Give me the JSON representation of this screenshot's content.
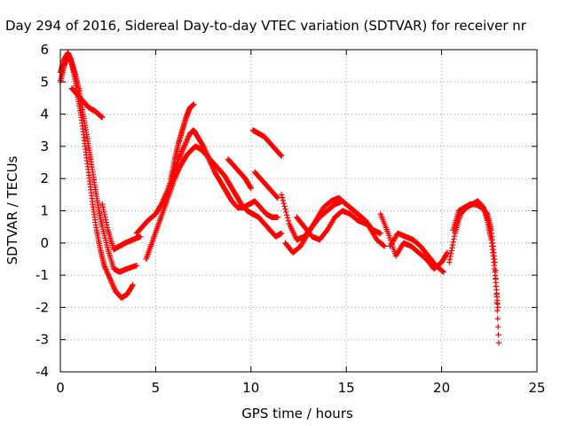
{
  "chart_data": {
    "type": "scatter",
    "title": "Day 294 of 2016, Sidereal Day-to-day VTEC variation (SDTVAR) for receiver nr",
    "xlabel": "GPS time / hours",
    "ylabel": "SDTVAR / TECUs",
    "xlim": [
      0,
      25
    ],
    "ylim": [
      -4,
      6
    ],
    "xticks": [
      0,
      5,
      10,
      15,
      20,
      25
    ],
    "yticks": [
      -4,
      -3,
      -2,
      -1,
      0,
      1,
      2,
      3,
      4,
      5,
      6
    ],
    "grid": true,
    "legend": "none",
    "marker": "plus",
    "color": "#ff0000",
    "series": [
      {
        "x": [
          0.0,
          0.2,
          0.4,
          0.55,
          0.7,
          0.9,
          1.1,
          1.3,
          1.5,
          1.7,
          1.9,
          2.1,
          2.3,
          2.6,
          2.9,
          3.2,
          3.5,
          3.8
        ],
        "y": [
          5.3,
          5.7,
          5.9,
          5.7,
          5.3,
          4.6,
          3.9,
          3.0,
          2.1,
          1.2,
          0.4,
          -0.2,
          -0.7,
          -1.1,
          -1.5,
          -1.7,
          -1.6,
          -1.3
        ]
      },
      {
        "x": [
          0.0,
          0.2,
          0.4,
          0.6,
          0.8,
          1.0,
          1.2,
          1.4,
          1.6,
          1.8,
          2.0,
          2.2,
          2.5,
          2.8,
          3.1,
          3.5,
          4.0
        ],
        "y": [
          5.0,
          5.5,
          5.8,
          5.6,
          5.2,
          4.7,
          4.0,
          3.3,
          2.6,
          1.8,
          1.1,
          0.5,
          -0.2,
          -0.8,
          -0.9,
          -0.8,
          -0.7
        ]
      },
      {
        "x": [
          0.6,
          0.9,
          1.2,
          1.5,
          1.8,
          2.0,
          2.2
        ],
        "y": [
          4.8,
          4.6,
          4.4,
          4.2,
          4.1,
          4.0,
          3.9
        ]
      },
      {
        "x": [
          2.2,
          2.5,
          2.8,
          3.1,
          3.4,
          3.8,
          4.2
        ],
        "y": [
          1.2,
          0.4,
          -0.2,
          -0.1,
          0.0,
          0.1,
          0.2
        ]
      },
      {
        "x": [
          4.0,
          4.3,
          4.6,
          5.0,
          5.3,
          5.6,
          5.9,
          6.2,
          6.5,
          6.8,
          7.0,
          7.2,
          7.5,
          7.8,
          8.1,
          8.4,
          8.7,
          9.0,
          9.3,
          9.6,
          9.9,
          10.2,
          10.5,
          10.8,
          11.1,
          11.4
        ],
        "y": [
          0.3,
          0.5,
          0.7,
          0.9,
          1.2,
          1.6,
          2.1,
          2.6,
          3.0,
          3.4,
          3.5,
          3.3,
          3.0,
          2.6,
          2.2,
          1.9,
          1.6,
          1.3,
          1.1,
          1.1,
          1.2,
          1.3,
          1.1,
          0.9,
          0.8,
          0.8
        ]
      },
      {
        "x": [
          4.5,
          4.8,
          5.1,
          5.4,
          5.7,
          6.0,
          6.3,
          6.6,
          6.9,
          7.1,
          7.4,
          7.7,
          8.0,
          8.3,
          8.6,
          8.9,
          9.2,
          9.5,
          9.8,
          10.1,
          10.4,
          10.7,
          11.0,
          11.3,
          11.6
        ],
        "y": [
          -0.5,
          0.0,
          0.5,
          1.0,
          1.5,
          2.0,
          2.4,
          2.7,
          2.9,
          3.0,
          2.9,
          2.7,
          2.5,
          2.3,
          2.1,
          1.8,
          1.5,
          1.2,
          1.0,
          0.9,
          0.8,
          0.6,
          0.4,
          0.2,
          0.3
        ]
      },
      {
        "x": [
          5.8,
          6.0,
          6.2,
          6.4,
          6.6,
          6.8,
          7.0
        ],
        "y": [
          2.0,
          2.6,
          3.1,
          3.5,
          3.9,
          4.2,
          4.3
        ]
      },
      {
        "x": [
          8.8,
          9.1,
          9.4,
          9.7,
          10.0
        ],
        "y": [
          2.6,
          2.4,
          2.2,
          2.0,
          1.7
        ]
      },
      {
        "x": [
          10.1,
          10.4,
          10.7,
          11.0,
          11.3,
          11.6
        ],
        "y": [
          3.5,
          3.4,
          3.3,
          3.1,
          2.9,
          2.7
        ]
      },
      {
        "x": [
          10.2,
          10.5,
          10.8,
          11.1,
          11.4
        ],
        "y": [
          2.2,
          2.0,
          1.8,
          1.6,
          1.4
        ]
      },
      {
        "x": [
          11.6,
          12.0,
          12.4,
          12.8,
          13.2,
          13.6,
          14.0,
          14.4,
          14.8,
          15.2,
          15.6,
          16.0,
          16.4,
          16.8
        ],
        "y": [
          1.5,
          0.6,
          0.1,
          0.2,
          0.5,
          0.8,
          1.0,
          1.2,
          1.3,
          1.1,
          0.9,
          0.7,
          0.4,
          0.3
        ]
      },
      {
        "x": [
          11.8,
          12.2,
          12.6,
          13.0,
          13.4,
          13.8,
          14.2,
          14.6,
          15.0,
          15.4,
          15.8,
          16.2,
          16.6,
          17.0
        ],
        "y": [
          0.0,
          -0.3,
          -0.1,
          0.3,
          0.7,
          1.1,
          1.3,
          1.4,
          1.2,
          1.0,
          0.8,
          0.5,
          0.1,
          -0.1
        ]
      },
      {
        "x": [
          12.4,
          12.8,
          13.2,
          13.6,
          14.0,
          14.4,
          14.8,
          15.2,
          15.6,
          16.0
        ],
        "y": [
          0.8,
          0.5,
          0.2,
          0.1,
          0.4,
          0.8,
          1.0,
          0.9,
          0.7,
          0.6
        ]
      },
      {
        "x": [
          16.8,
          17.2,
          17.6,
          18.0,
          18.4,
          18.8,
          19.2,
          19.6,
          20.0,
          20.3
        ],
        "y": [
          0.9,
          0.3,
          -0.4,
          0.0,
          -0.1,
          -0.3,
          -0.5,
          -0.8,
          -0.6,
          -0.3
        ]
      },
      {
        "x": [
          17.3,
          17.7,
          18.1,
          18.5,
          18.9,
          19.3,
          19.7,
          20.1
        ],
        "y": [
          -0.1,
          0.3,
          0.2,
          0.1,
          -0.1,
          -0.4,
          -0.7,
          -0.9
        ]
      },
      {
        "x": [
          20.4,
          20.7,
          21.0,
          21.3,
          21.6,
          21.9,
          22.2,
          22.4,
          22.6,
          22.8,
          22.95
        ],
        "y": [
          -0.6,
          0.3,
          0.9,
          1.1,
          1.2,
          1.3,
          1.1,
          0.7,
          0.1,
          -0.9,
          -2.0
        ]
      },
      {
        "x": [
          20.6,
          20.9,
          21.2,
          21.5,
          21.8,
          22.1,
          22.4,
          22.6,
          22.8,
          23.0
        ],
        "y": [
          0.4,
          1.0,
          1.1,
          1.2,
          1.2,
          1.1,
          0.9,
          0.4,
          -0.6,
          -3.1
        ]
      }
    ]
  }
}
